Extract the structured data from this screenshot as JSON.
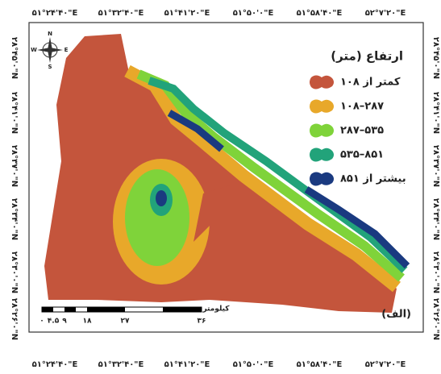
{
  "map": {
    "top_labels": [
      "۵۱°۲۴'۴۰\"E",
      "۵۱°۳۲'۴۰\"E",
      "۵۱°۴۱'۲۰\"E",
      "۵۱°۵۰'۰\"E",
      "۵۱°۵۸'۴۰\"E",
      "۵۲°۷'۲۰\"E"
    ],
    "bottom_labels": [
      "۵۱°۲۴'۴۰\"E",
      "۵۱°۳۲'۴۰\"E",
      "۵۱°۴۱'۲۰\"E",
      "۵۱°۵۰'۰\"E",
      "۵۱°۵۸'۴۰\"E",
      "۵۲°۷'۲۰\"E"
    ],
    "left_labels": [
      "۲۸°۴۵'۰\"N",
      "۲۸°۴۱'۰\"N",
      "۲۸°۳۷'۰\"N",
      "۲۸°۳۴'۰\"N",
      "۲۸°۳۰'۰\"N",
      "۲۸°۲۶'۰\"N"
    ],
    "right_labels": [
      "۲۸°۴۵'۰\"N",
      "۲۸°۴۱'۰\"N",
      "۲۸°۳۷'۰\"N",
      "۲۸°۳۴'۰\"N",
      "۲۸°۳۰'۰\"N",
      "۲۸°۲۶'۰\"N"
    ],
    "legend": {
      "title": "ارتفاع (متر)",
      "items": [
        {
          "label": "کمتر از ۱۰۸",
          "color": "#c4553c"
        },
        {
          "label": "۱۰۸–۲۸۷",
          "color": "#e8a82a"
        },
        {
          "label": "۲۸۷–۵۳۵",
          "color": "#7fd33a"
        },
        {
          "label": "۵۳۵–۸۵۱",
          "color": "#22a37a"
        },
        {
          "label": "بیشتر از ۸۵۱",
          "color": "#1a3a80"
        }
      ]
    },
    "scale": {
      "unit": "کیلومتر",
      "labels": [
        "۰",
        "۴.۵",
        "۹",
        "۱۸",
        "۲۷",
        "۳۶"
      ]
    },
    "panel_label": "(الف)",
    "north": {
      "n": "N",
      "s": "S",
      "e": "E",
      "w": "W"
    }
  }
}
